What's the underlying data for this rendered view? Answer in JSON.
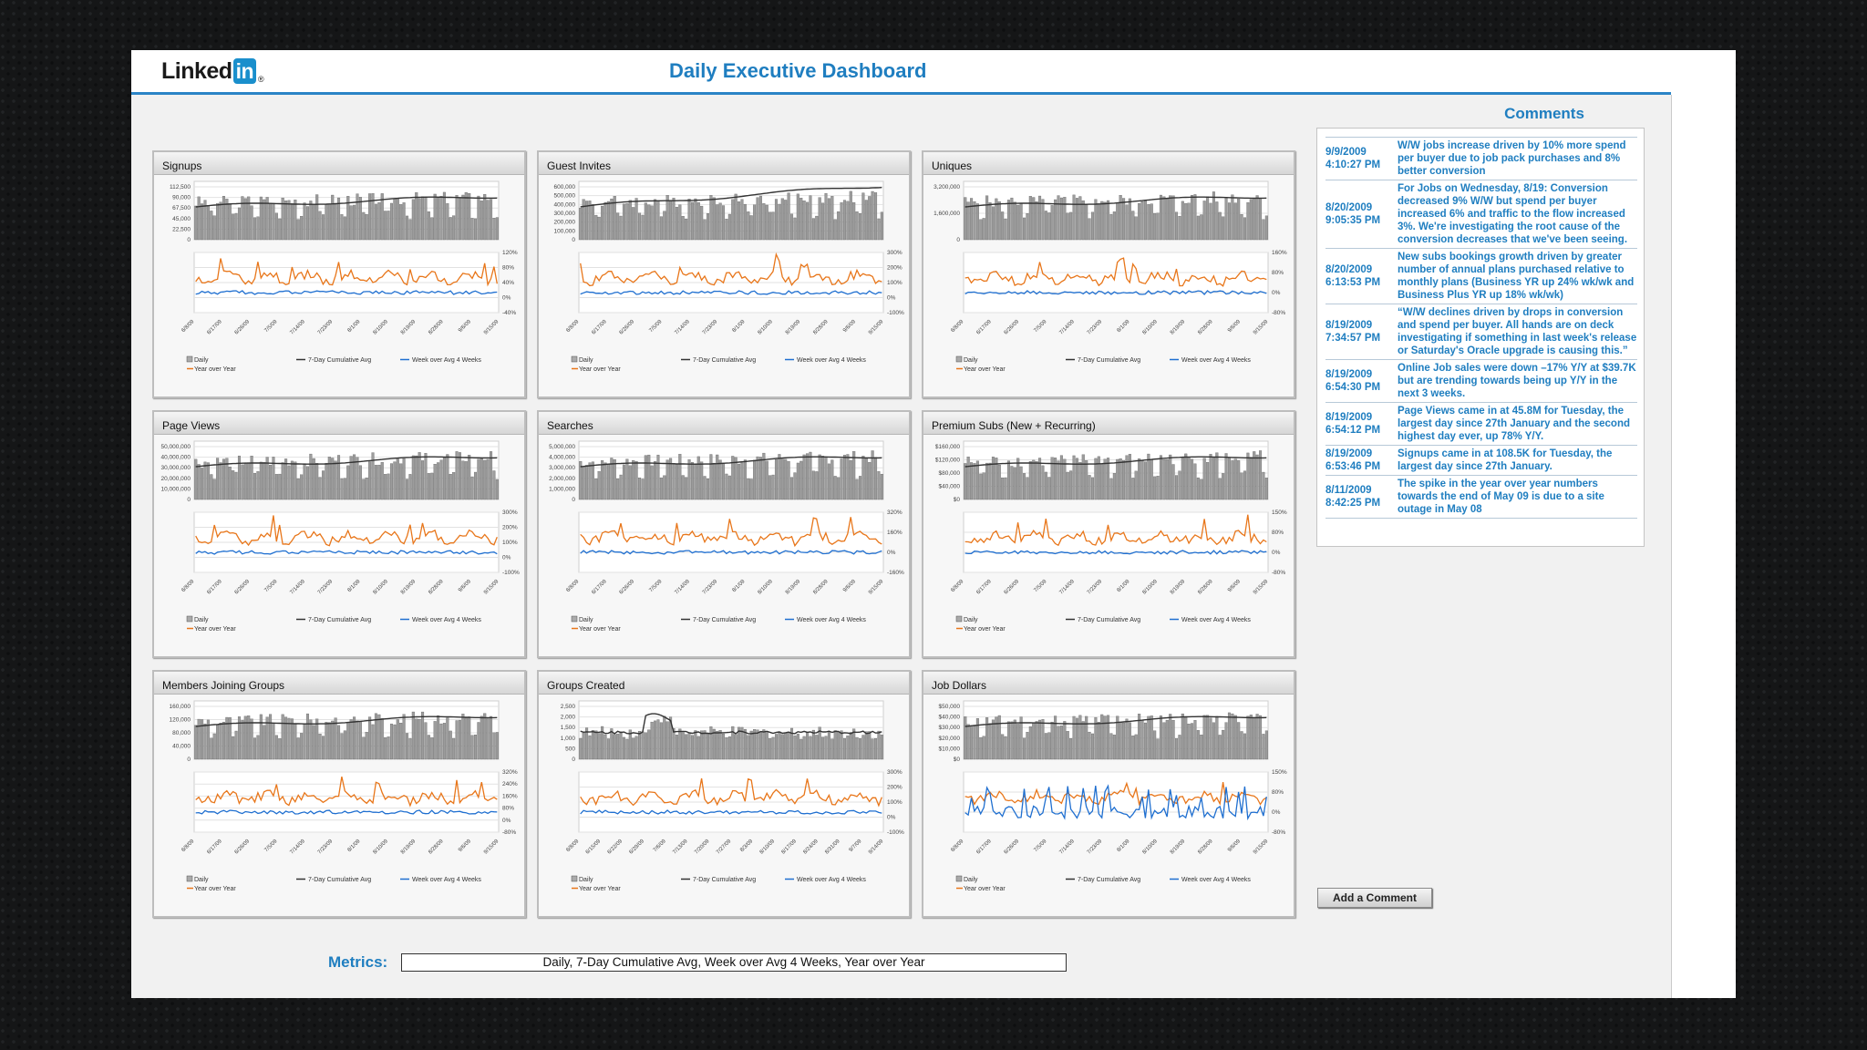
{
  "header": {
    "logo_text": "Linked",
    "logo_in": "in",
    "logo_reg": "®",
    "title": "Daily Executive Dashboard"
  },
  "colors": {
    "accent": "#1f7ec0",
    "bar": "#8a8a8a",
    "cumulative": "#333333",
    "week": "#1f6fd0",
    "yoy": "#e8761a"
  },
  "dates": [
    "6/8/09",
    "6/17/09",
    "6/26/09",
    "7/5/09",
    "7/14/09",
    "7/23/09",
    "8/1/09",
    "8/10/09",
    "8/19/09",
    "8/28/09",
    "9/6/09",
    "9/15/09"
  ],
  "dates_groups": [
    "6/8/09",
    "6/15/09",
    "6/22/09",
    "6/29/09",
    "7/6/09",
    "7/13/09",
    "7/20/09",
    "7/27/09",
    "8/3/09",
    "8/10/09",
    "8/17/09",
    "8/24/09",
    "8/31/09",
    "9/7/09",
    "9/14/09"
  ],
  "legend": {
    "daily": "Daily",
    "cumulative": "7-Day Cumulative Avg",
    "week": "Week over Avg 4 Weeks",
    "yoy": "Year over Year"
  },
  "charts": [
    {
      "title": "Signups",
      "upper_ticks": [
        "112,500",
        "90,000",
        "67,500",
        "45,000",
        "22,500",
        "0"
      ],
      "lower_ticks": [
        "120%",
        "80%",
        "40%",
        "0%",
        "-40%"
      ]
    },
    {
      "title": "Guest Invites",
      "upper_ticks": [
        "600,000",
        "500,000",
        "400,000",
        "300,000",
        "200,000",
        "100,000",
        "0"
      ],
      "lower_ticks": [
        "300%",
        "200%",
        "100%",
        "0%",
        "-100%"
      ]
    },
    {
      "title": "Uniques",
      "upper_ticks": [
        "3,200,000",
        "1,600,000",
        "0"
      ],
      "lower_ticks": [
        "160%",
        "80%",
        "0%",
        "-80%"
      ]
    },
    {
      "title": "Page Views",
      "upper_ticks": [
        "50,000,000",
        "40,000,000",
        "30,000,000",
        "20,000,000",
        "10,000,000",
        "0"
      ],
      "lower_ticks": [
        "300%",
        "200%",
        "100%",
        "0%",
        "-100%"
      ]
    },
    {
      "title": "Searches",
      "upper_ticks": [
        "5,000,000",
        "4,000,000",
        "3,000,000",
        "2,000,000",
        "1,000,000",
        "0"
      ],
      "lower_ticks": [
        "320%",
        "160%",
        "0%",
        "-160%"
      ]
    },
    {
      "title": "Premium Subs (New + Recurring)",
      "upper_ticks": [
        "$160,000",
        "$120,000",
        "$80,000",
        "$40,000",
        "$0"
      ],
      "lower_ticks": [
        "150%",
        "80%",
        "0%",
        "-80%"
      ]
    },
    {
      "title": "Members Joining Groups",
      "upper_ticks": [
        "160,000",
        "120,000",
        "80,000",
        "40,000",
        "0"
      ],
      "lower_ticks": [
        "320%",
        "240%",
        "160%",
        "80%",
        "0%",
        "-80%"
      ]
    },
    {
      "title": "Groups Created",
      "upper_ticks": [
        "2,500",
        "2,000",
        "1,500",
        "1,000",
        "500",
        "0"
      ],
      "lower_ticks": [
        "300%",
        "200%",
        "100%",
        "0%",
        "-100%"
      ]
    },
    {
      "title": "Job Dollars",
      "upper_ticks": [
        "$50,000",
        "$40,000",
        "$30,000",
        "$20,000",
        "$10,000",
        "$0"
      ],
      "lower_ticks": [
        "150%",
        "80%",
        "0%",
        "-80%"
      ]
    }
  ],
  "comments_title": "Comments",
  "comments": [
    {
      "date": "9/9/2009",
      "time": "4:10:27 PM",
      "text": "W/W jobs increase driven by 10% more spend per buyer due to job pack purchases and 8% better conversion"
    },
    {
      "date": "8/20/2009",
      "time": "9:05:35 PM",
      "text": "For Jobs on Wednesday, 8/19: Conversion decreased 9% W/W but spend per buyer increased 6% and traffic to the flow increased 3%.  We're investigating the root cause of the conversion decreases that we've been seeing."
    },
    {
      "date": "8/20/2009",
      "time": "6:13:53 PM",
      "text": "New subs bookings growth driven by greater number of annual plans purchased relative to monthly plans (Business YR up 24% wk/wk and Business Plus YR up 18% wk/wk)"
    },
    {
      "date": "8/19/2009",
      "time": "7:34:57 PM",
      "text": "“W/W declines driven by drops in conversion and spend per buyer. All hands are on deck investigating if something in last week's release or Saturday's Oracle upgrade is causing this.”"
    },
    {
      "date": "8/19/2009",
      "time": "6:54:30 PM",
      "text": "Online Job sales were down –17% Y/Y at $39.7K but are trending towards being up Y/Y in the next 3 weeks."
    },
    {
      "date": "8/19/2009",
      "time": "6:54:12 PM",
      "text": "Page Views came in at 45.8M for Tuesday, the largest day since 27th January and the second highest day ever, up 78% Y/Y."
    },
    {
      "date": "8/19/2009",
      "time": "6:53:46 PM",
      "text": "Signups came in at 108.5K for Tuesday, the largest day since 27th January."
    },
    {
      "date": "8/11/2009",
      "time": "8:42:25 PM",
      "text": "The spike in the year over year numbers towards the end of May 09 is due to a site outage in May 08"
    }
  ],
  "add_comment_label": "Add a Comment",
  "metrics_label": "Metrics:",
  "metrics_value": "Daily, 7-Day Cumulative Avg, Week over Avg 4 Weeks, Year over Year"
}
